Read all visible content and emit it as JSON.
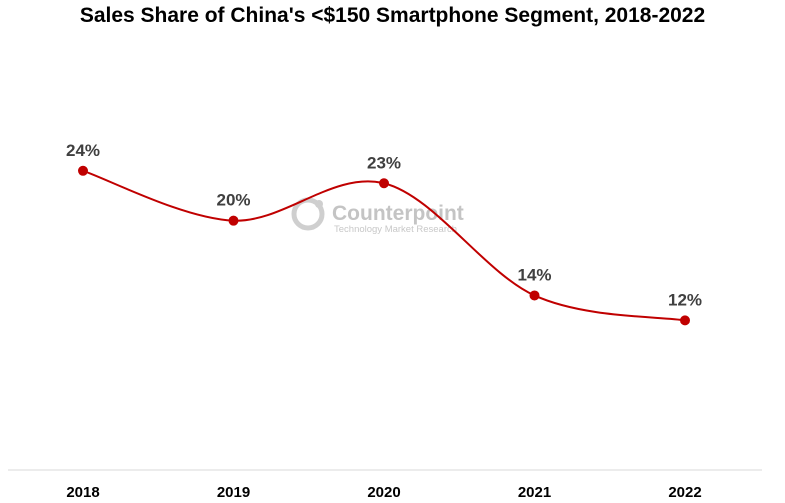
{
  "chart_data": {
    "type": "line",
    "title": "Sales Share of China's <$150 Smartphone Segment, 2018-2022",
    "categories": [
      "2018",
      "2019",
      "2020",
      "2021",
      "2022"
    ],
    "series": [
      {
        "name": "Sales share",
        "values": [
          24,
          20,
          23,
          14,
          12
        ],
        "labels": [
          "24%",
          "20%",
          "23%",
          "14%",
          "12%"
        ]
      }
    ],
    "xlabel": "",
    "ylabel": "",
    "ylim": [
      0,
      30
    ],
    "grid": false,
    "smooth": true,
    "colors": {
      "line": "#c00000",
      "marker": "#c00000",
      "data_label": "#404040",
      "axis": "#d9d9d9"
    }
  },
  "watermark": {
    "brand": "Counterpoint",
    "tagline": "Technology Market Research",
    "icon": "counterpoint-logo-icon"
  }
}
